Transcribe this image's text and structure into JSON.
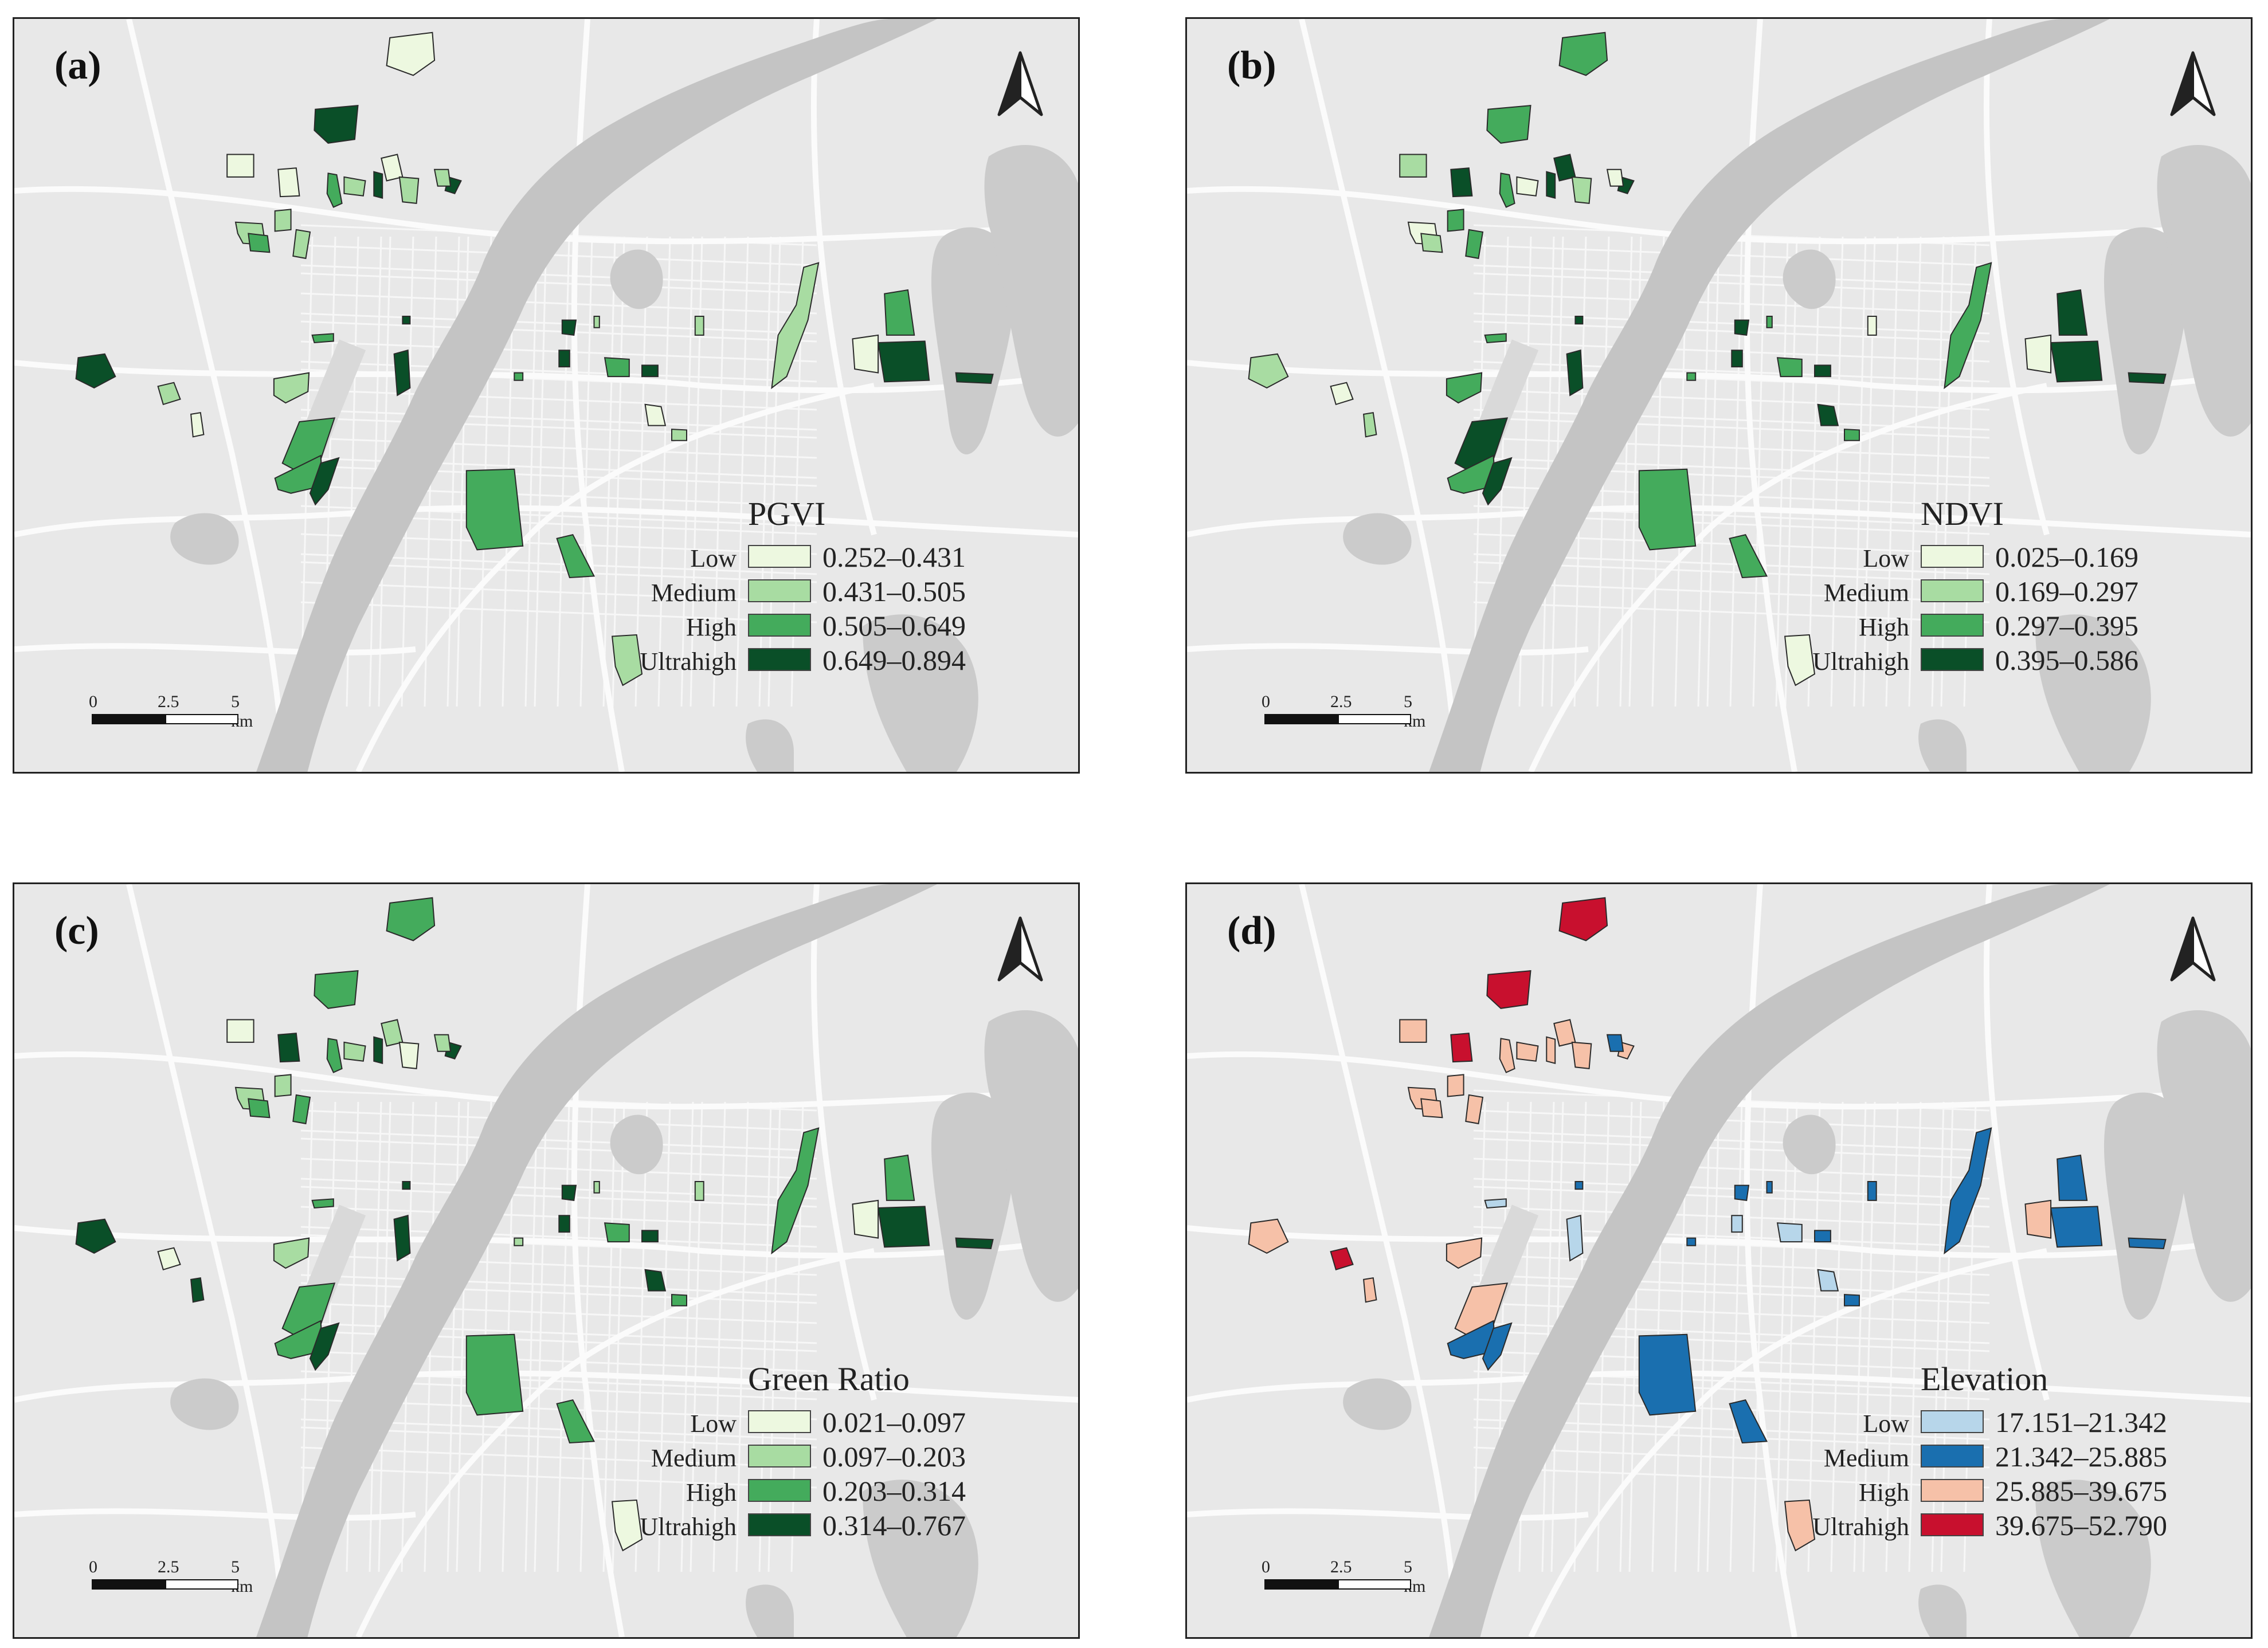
{
  "scale_bar": {
    "ticks": [
      "0",
      "2.5",
      "5 km"
    ]
  },
  "class_names": [
    "Low",
    "Medium",
    "High",
    "Ultrahigh"
  ],
  "panels": [
    {
      "label": "(a)",
      "legend_title": "PGVI",
      "ranges": [
        "0.252–0.431",
        "0.431–0.505",
        "0.505–0.649",
        "0.649–0.894"
      ],
      "colors": [
        "#edf8e0",
        "#a8dca2",
        "#44ab5c",
        "#0a4f28"
      ]
    },
    {
      "label": "(b)",
      "legend_title": "NDVI",
      "ranges": [
        "0.025–0.169",
        "0.169–0.297",
        "0.297–0.395",
        "0.395–0.586"
      ],
      "colors": [
        "#edf8e0",
        "#a8dca2",
        "#44ab5c",
        "#0a4f28"
      ]
    },
    {
      "label": "(c)",
      "legend_title": "Green Ratio",
      "ranges": [
        "0.021–0.097",
        "0.097–0.203",
        "0.203–0.314",
        "0.314–0.767"
      ],
      "colors": [
        "#edf8e0",
        "#a8dca2",
        "#44ab5c",
        "#0a4f28"
      ]
    },
    {
      "label": "(d)",
      "legend_title": "Elevation",
      "ranges": [
        "17.151–21.342",
        "21.342–25.885",
        "25.885–39.675",
        "39.675–52.790"
      ],
      "colors": [
        "#b7d6ea",
        "#1a6faf",
        "#f6c1a8",
        "#c8102e"
      ]
    }
  ],
  "park_classes": {
    "a": [
      0,
      3,
      1,
      0,
      1,
      1,
      2,
      1,
      2,
      3,
      0,
      1,
      3,
      3,
      1,
      0,
      1,
      2,
      2,
      3,
      3,
      2,
      2,
      2,
      3,
      3,
      0,
      1,
      1,
      2,
      3,
      0,
      3,
      1,
      0,
      1,
      2,
      3,
      2,
      1,
      3,
      1
    ],
    "b": [
      2,
      2,
      0,
      3,
      2,
      2,
      2,
      0,
      1,
      3,
      3,
      1,
      3,
      1,
      0,
      1,
      2,
      3,
      2,
      3,
      3,
      2,
      2,
      2,
      3,
      3,
      3,
      2,
      2,
      3,
      3,
      0,
      3,
      0,
      1,
      0,
      2,
      3,
      2,
      2,
      3,
      0
    ],
    "c": [
      2,
      2,
      1,
      3,
      1,
      2,
      2,
      1,
      2,
      3,
      1,
      0,
      3,
      3,
      0,
      3,
      1,
      2,
      2,
      3,
      3,
      2,
      2,
      2,
      3,
      3,
      3,
      2,
      2,
      2,
      3,
      0,
      3,
      0,
      0,
      1,
      2,
      3,
      1,
      1,
      3,
      1
    ],
    "d": [
      3,
      3,
      2,
      3,
      2,
      2,
      2,
      2,
      2,
      2,
      2,
      2,
      2,
      2,
      3,
      2,
      2,
      2,
      1,
      1,
      0,
      1,
      1,
      0,
      1,
      0,
      0,
      1,
      1,
      1,
      1,
      2,
      1,
      2,
      2,
      1,
      0,
      1,
      1,
      1,
      1,
      1
    ]
  }
}
